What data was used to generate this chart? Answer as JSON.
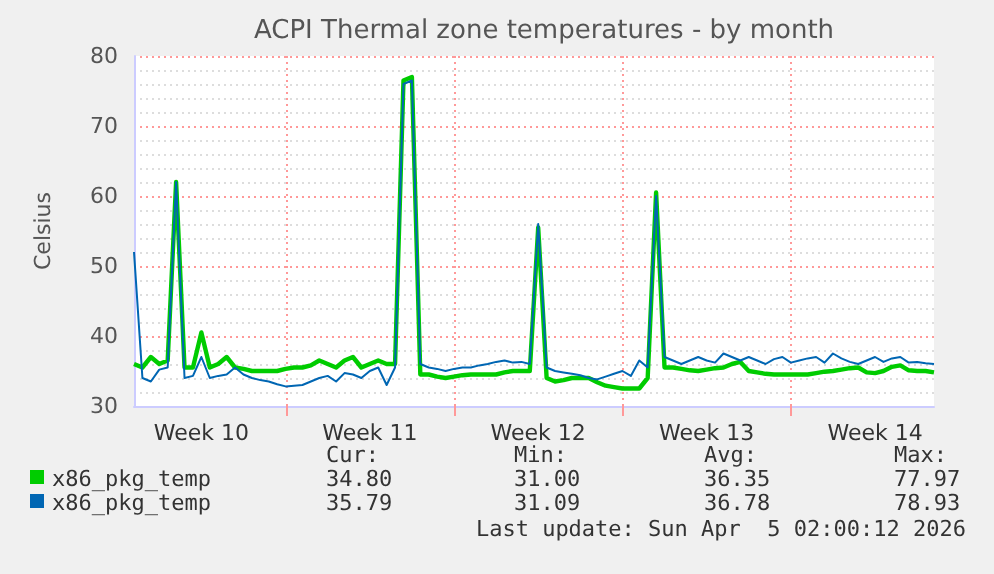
{
  "chart_data": {
    "type": "line",
    "title": "ACPI Thermal zone temperatures - by month",
    "ylabel": "Celsius",
    "categories": [
      null,
      null,
      null,
      null,
      null,
      null,
      null,
      null,
      "Week 10",
      null,
      null,
      null,
      null,
      null,
      null,
      null,
      null,
      null,
      null,
      null,
      null,
      null,
      null,
      null,
      null,
      null,
      null,
      null,
      "Week 11",
      null,
      null,
      null,
      null,
      null,
      null,
      null,
      null,
      null,
      null,
      null,
      null,
      null,
      null,
      null,
      null,
      null,
      null,
      null,
      "Week 12",
      null,
      null,
      null,
      null,
      null,
      null,
      null,
      null,
      null,
      null,
      null,
      null,
      null,
      null,
      null,
      null,
      null,
      null,
      null,
      "Week 13",
      null,
      null,
      null,
      null,
      null,
      null,
      null,
      null,
      null,
      null,
      null,
      null,
      null,
      null,
      null,
      null,
      null,
      null,
      null,
      "Week 14",
      null,
      null,
      null,
      null,
      null,
      null,
      null
    ],
    "ylim": [
      30,
      80
    ],
    "yticks": [
      30,
      40,
      50,
      60,
      70,
      80
    ],
    "grid": true,
    "legend": "bottom",
    "marker": "none",
    "line_style": "solid",
    "series": [
      {
        "name": "x86_pkg_temp",
        "color": "#00cc00",
        "values": [
          36,
          35.5,
          37,
          36,
          36.5,
          62,
          35.5,
          35.5,
          40.5,
          35.5,
          36,
          37,
          35.5,
          35.3,
          35,
          35,
          35,
          35,
          35.3,
          35.5,
          35.5,
          35.8,
          36.5,
          36,
          35.5,
          36.5,
          37,
          35.5,
          36,
          36.5,
          36,
          36,
          76.5,
          77,
          34.5,
          34.5,
          34.2,
          34,
          34.2,
          34.4,
          34.5,
          34.5,
          34.5,
          34.5,
          34.8,
          35,
          35,
          35,
          55.5,
          34,
          33.5,
          33.7,
          34,
          34,
          34,
          33.4,
          32.9,
          32.7,
          32.5,
          32.5,
          32.5,
          34,
          60.5,
          35.5,
          35.5,
          35.3,
          35.1,
          35,
          35.2,
          35.4,
          35.5,
          36,
          36.3,
          35,
          34.8,
          34.6,
          34.5,
          34.5,
          34.5,
          34.5,
          34.5,
          34.7,
          34.9,
          35,
          35.2,
          35.4,
          35.5,
          34.8,
          34.7,
          35,
          35.6,
          35.8,
          35.1,
          35,
          35,
          34.8
        ]
      },
      {
        "name": "x86_pkg_temp",
        "color": "#0066b3",
        "values": [
          52,
          34,
          33.5,
          35.2,
          35.5,
          62,
          34,
          34.3,
          37,
          34,
          34.3,
          34.5,
          35.5,
          34.5,
          34,
          33.7,
          33.5,
          33.1,
          32.8,
          32.9,
          33,
          33.5,
          34,
          34.3,
          33.5,
          34.7,
          34.5,
          34,
          35,
          35.5,
          33,
          35.5,
          76,
          76.5,
          36,
          35.5,
          35.3,
          35,
          35.3,
          35.5,
          35.5,
          35.8,
          36,
          36.3,
          36.5,
          36.2,
          36.3,
          36,
          56,
          35.5,
          35,
          34.8,
          34.6,
          34.4,
          34,
          33.8,
          34.2,
          34.6,
          35,
          34.3,
          36.5,
          35.5,
          60,
          37,
          36.5,
          36,
          36.5,
          37,
          36.5,
          36.2,
          37.5,
          37,
          36.5,
          37,
          36.5,
          36,
          36.7,
          37,
          36.2,
          36.5,
          36.8,
          37,
          36.2,
          37.5,
          36.8,
          36.3,
          36,
          36.5,
          37,
          36.3,
          36.8,
          37,
          36.2,
          36.3,
          36.1,
          36
        ]
      }
    ],
    "annotations": [
      "Cur:",
      "Min:",
      "Avg:",
      "Max:",
      "34.80",
      "31.00",
      "36.35",
      "77.97",
      "35.79",
      "31.09",
      "36.78",
      "78.93",
      "Last update: Sun Apr  5 02:00:12 2026"
    ]
  }
}
